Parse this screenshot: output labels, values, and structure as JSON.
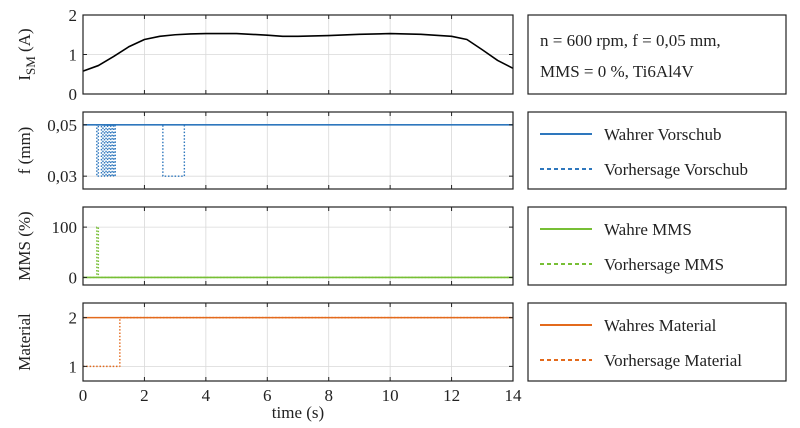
{
  "colors": {
    "current": "#000000",
    "feed": "#2e77bd",
    "mms": "#77bf35",
    "material": "#e36a1c",
    "grid": "#d9d9d9",
    "frame": "#222222"
  },
  "chart_data": [
    {
      "type": "line",
      "ylabel_main": "I",
      "ylabel_sub": "SM",
      "ylabel_unit": "(A)",
      "ylim": [
        0,
        2
      ],
      "yticks": [
        0,
        1,
        2
      ],
      "ytick_labels": [
        "0",
        "1",
        "2"
      ],
      "xlim": [
        0,
        14
      ],
      "grid": true,
      "series": [
        {
          "x": [
            0,
            0.5,
            1,
            1.5,
            2,
            2.5,
            3,
            3.5,
            4,
            5,
            6,
            6.5,
            7,
            8,
            9,
            10,
            11,
            12,
            12.5,
            13,
            13.5,
            14
          ],
          "y": [
            0.58,
            0.72,
            0.95,
            1.2,
            1.38,
            1.46,
            1.5,
            1.52,
            1.53,
            1.53,
            1.49,
            1.46,
            1.46,
            1.48,
            1.51,
            1.53,
            1.51,
            1.46,
            1.38,
            1.12,
            0.85,
            0.65
          ]
        }
      ],
      "legend_lines": [
        "n = 600 rpm, f = 0,05 mm,",
        "MMS = 0 %, Ti6Al4V"
      ]
    },
    {
      "type": "line",
      "ylabel": "f (mm)",
      "ylim": [
        0.025,
        0.055
      ],
      "yticks": [
        0.03,
        0.05
      ],
      "ytick_labels": [
        "0,03",
        "0,05"
      ],
      "xlim": [
        0,
        14
      ],
      "grid": true,
      "series": [
        {
          "name": "Wahrer Vorschub",
          "style": "solid",
          "x": [
            0,
            14
          ],
          "y": [
            0.05,
            0.05
          ]
        },
        {
          "name": "Vorhersage Vorschub",
          "style": "dotted",
          "x": [
            0,
            0.45,
            0.45,
            0.5,
            0.5,
            0.6,
            0.6,
            0.65,
            0.65,
            0.7,
            0.7,
            0.75,
            0.75,
            0.8,
            0.8,
            0.85,
            0.85,
            0.9,
            0.9,
            0.95,
            0.95,
            1.0,
            1.0,
            1.05,
            1.05,
            1.1,
            1.1,
            2.6,
            2.6,
            3.3,
            3.3,
            14
          ],
          "y": [
            0.05,
            0.05,
            0.03,
            0.03,
            0.05,
            0.05,
            0.03,
            0.03,
            0.05,
            0.05,
            0.03,
            0.03,
            0.05,
            0.05,
            0.03,
            0.03,
            0.05,
            0.05,
            0.03,
            0.03,
            0.05,
            0.05,
            0.03,
            0.03,
            0.05,
            0.05,
            0.05,
            0.05,
            0.03,
            0.03,
            0.05,
            0.05
          ]
        }
      ]
    },
    {
      "type": "line",
      "ylabel": "MMS (%)",
      "ylim": [
        -15,
        140
      ],
      "yticks": [
        0,
        100
      ],
      "ytick_labels": [
        "0",
        "100"
      ],
      "xlim": [
        0,
        14
      ],
      "grid": true,
      "series": [
        {
          "name": "Wahre MMS",
          "style": "solid",
          "x": [
            0,
            14
          ],
          "y": [
            0,
            0
          ]
        },
        {
          "name": "Vorhersage MMS",
          "style": "dotted",
          "x": [
            0,
            0.45,
            0.45,
            0.5,
            0.5,
            14
          ],
          "y": [
            0,
            0,
            100,
            100,
            0,
            0
          ]
        }
      ]
    },
    {
      "type": "line",
      "ylabel": "Material",
      "ylim": [
        0.7,
        2.3
      ],
      "yticks": [
        1,
        2
      ],
      "ytick_labels": [
        "1",
        "2"
      ],
      "xlim": [
        0,
        14
      ],
      "xticks": [
        0,
        2,
        4,
        6,
        8,
        10,
        12,
        14
      ],
      "xtick_labels": [
        "0",
        "2",
        "4",
        "6",
        "8",
        "10",
        "12",
        "14"
      ],
      "xlabel": "time (s)",
      "grid": true,
      "series": [
        {
          "name": "Wahres Material",
          "style": "solid",
          "x": [
            0,
            14
          ],
          "y": [
            2,
            2
          ]
        },
        {
          "name": "Vorhersage Material",
          "style": "dotted",
          "x": [
            0,
            1.2,
            1.2,
            14
          ],
          "y": [
            1,
            1,
            2,
            2
          ]
        }
      ]
    }
  ]
}
